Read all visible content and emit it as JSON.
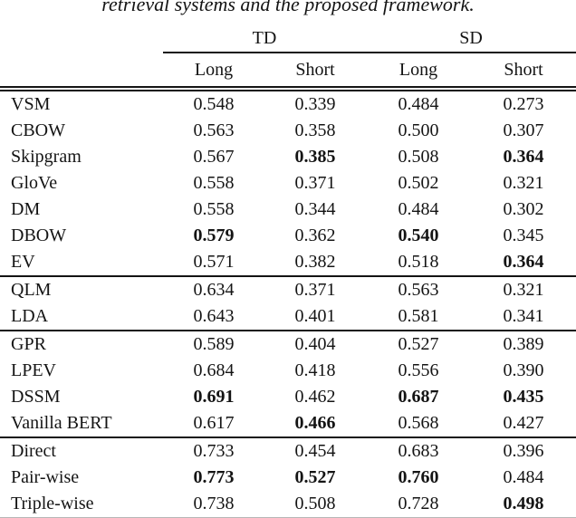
{
  "caption": "retrieval systems and the proposed framework.",
  "colors": {
    "text": "#141414",
    "rule": "#141414",
    "background": "#ffffff"
  },
  "table": {
    "group_headers": [
      "TD",
      "SD"
    ],
    "sub_headers": [
      "Long",
      "Short",
      "Long",
      "Short"
    ],
    "sections": [
      {
        "rows": [
          {
            "label": "VSM",
            "values": [
              "0.548",
              "0.339",
              "0.484",
              "0.273"
            ],
            "bold": [
              false,
              false,
              false,
              false
            ]
          },
          {
            "label": "CBOW",
            "values": [
              "0.563",
              "0.358",
              "0.500",
              "0.307"
            ],
            "bold": [
              false,
              false,
              false,
              false
            ]
          },
          {
            "label": "Skipgram",
            "values": [
              "0.567",
              "0.385",
              "0.508",
              "0.364"
            ],
            "bold": [
              false,
              true,
              false,
              true
            ]
          },
          {
            "label": "GloVe",
            "values": [
              "0.558",
              "0.371",
              "0.502",
              "0.321"
            ],
            "bold": [
              false,
              false,
              false,
              false
            ]
          },
          {
            "label": "DM",
            "values": [
              "0.558",
              "0.344",
              "0.484",
              "0.302"
            ],
            "bold": [
              false,
              false,
              false,
              false
            ]
          },
          {
            "label": "DBOW",
            "values": [
              "0.579",
              "0.362",
              "0.540",
              "0.345"
            ],
            "bold": [
              true,
              false,
              true,
              false
            ]
          },
          {
            "label": "EV",
            "values": [
              "0.571",
              "0.382",
              "0.518",
              "0.364"
            ],
            "bold": [
              false,
              false,
              false,
              true
            ]
          }
        ]
      },
      {
        "rows": [
          {
            "label": "QLM",
            "values": [
              "0.634",
              "0.371",
              "0.563",
              "0.321"
            ],
            "bold": [
              false,
              false,
              false,
              false
            ]
          },
          {
            "label": "LDA",
            "values": [
              "0.643",
              "0.401",
              "0.581",
              "0.341"
            ],
            "bold": [
              false,
              false,
              false,
              false
            ]
          }
        ]
      },
      {
        "rows": [
          {
            "label": "GPR",
            "values": [
              "0.589",
              "0.404",
              "0.527",
              "0.389"
            ],
            "bold": [
              false,
              false,
              false,
              false
            ]
          },
          {
            "label": "LPEV",
            "values": [
              "0.684",
              "0.418",
              "0.556",
              "0.390"
            ],
            "bold": [
              false,
              false,
              false,
              false
            ]
          },
          {
            "label": "DSSM",
            "values": [
              "0.691",
              "0.462",
              "0.687",
              "0.435"
            ],
            "bold": [
              true,
              false,
              true,
              true
            ]
          },
          {
            "label": "Vanilla BERT",
            "values": [
              "0.617",
              "0.466",
              "0.568",
              "0.427"
            ],
            "bold": [
              false,
              true,
              false,
              false
            ]
          }
        ]
      },
      {
        "rows": [
          {
            "label": "Direct",
            "values": [
              "0.733",
              "0.454",
              "0.683",
              "0.396"
            ],
            "bold": [
              false,
              false,
              false,
              false
            ]
          },
          {
            "label": "Pair-wise",
            "values": [
              "0.773",
              "0.527",
              "0.760",
              "0.484"
            ],
            "bold": [
              true,
              true,
              true,
              false
            ]
          },
          {
            "label": "Triple-wise",
            "values": [
              "0.738",
              "0.508",
              "0.728",
              "0.498"
            ],
            "bold": [
              false,
              false,
              false,
              true
            ]
          }
        ]
      }
    ]
  }
}
